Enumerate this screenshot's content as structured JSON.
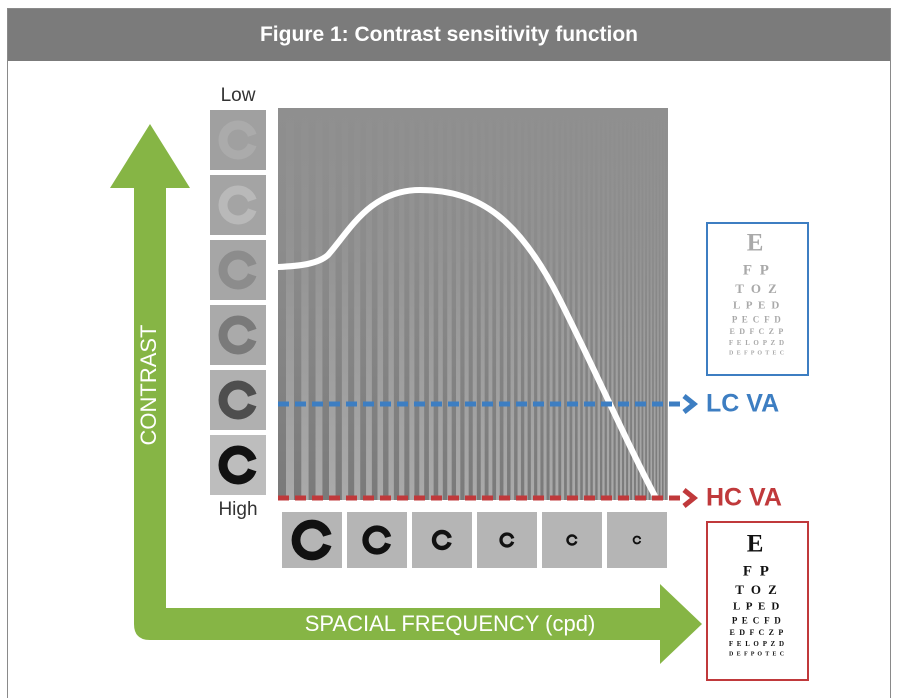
{
  "header": {
    "title": "Figure 1: Contrast sensitivity function"
  },
  "figure": {
    "contrast_low": "Low",
    "contrast_high": "High",
    "y_axis_label": "CONTRAST",
    "x_axis_label": "SPACIAL FREQUENCY (cpd)",
    "lc_label": "LC VA",
    "hc_label": "HC VA",
    "low_contrast_chart": {
      "rows": [
        "E",
        "F P",
        "T O Z",
        "L P E D",
        "P E C F D",
        "E D F C Z P",
        "F E L O P Z D",
        "D E F P O T E C"
      ]
    },
    "high_contrast_chart": {
      "rows": [
        "E",
        "F P",
        "T O Z",
        "L P E D",
        "P E C F D",
        "E D F C Z P",
        "F E L O P Z D",
        "D E F P O T E C"
      ]
    }
  }
}
